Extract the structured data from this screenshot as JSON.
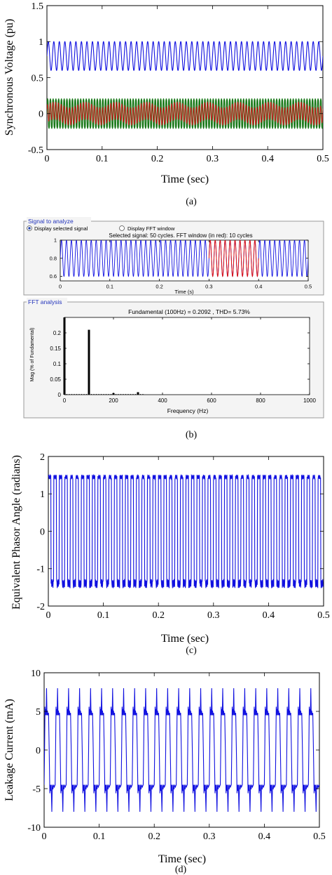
{
  "panel_a": {
    "caption": "(a)",
    "chart_data": {
      "type": "line",
      "xlabel": "Time (sec)",
      "ylabel": "Synchronous Voltage (pu)",
      "xlim": [
        0,
        0.5
      ],
      "ylim": [
        -0.5,
        1.5
      ],
      "xticks": [
        "0",
        "0.1",
        "0.2",
        "0.3",
        "0.4",
        "0.5"
      ],
      "yticks": [
        "-0.5",
        "0",
        "0.5",
        "1",
        "1.5"
      ],
      "grid": false,
      "series": [
        {
          "color": "#1010e0",
          "offset": 0.8,
          "amplitude": 0.2,
          "cycles": 50
        },
        {
          "color": "#187818",
          "offset": 0.0,
          "amplitude": 0.26,
          "cycles": 100
        },
        {
          "color": "#c0201a",
          "offset": 0.0,
          "amplitude": 0.12,
          "cycles": 100
        }
      ]
    }
  },
  "panel_b": {
    "caption": "(b)",
    "signal": {
      "group_title": "Signal to analyze",
      "radio_selected": "Display selected signal",
      "radio_other": "Display FFT window",
      "info": "Selected signal: 50 cycles. FFT window (in red): 10 cycles",
      "chart_data": {
        "type": "line",
        "xlabel": "Time (s)",
        "xlim": [
          0,
          0.5
        ],
        "ylim": [
          0.55,
          1.0
        ],
        "xticks": [
          "0",
          "0.1",
          "0.2",
          "0.3",
          "0.4",
          "0.5"
        ],
        "yticks": [
          "1",
          "0.8",
          "0.6"
        ],
        "offset": 0.8,
        "amplitude": 0.2,
        "cycles": 50,
        "fft_window": [
          0.3,
          0.4
        ],
        "colors": {
          "signal": "#1010e0",
          "window": "#e01010"
        }
      }
    },
    "fft": {
      "group_title": "FFT analysis",
      "title": "Fundamental (100Hz) = 0.2092 , THD= 5.73%",
      "chart_data": {
        "type": "bar",
        "xlabel": "Frequency (Hz)",
        "ylabel": "Mag (% of Fundamental)",
        "xlim": [
          0,
          1000
        ],
        "ylim": [
          0,
          0.25
        ],
        "xticks": [
          "0",
          "200",
          "400",
          "600",
          "800",
          "1000"
        ],
        "yticks": [
          "0.2",
          "0.15",
          "0.1",
          "0.05",
          "0"
        ],
        "x": [
          0,
          100,
          200,
          300
        ],
        "values": [
          0.25,
          0.21,
          0.005,
          0.008
        ]
      }
    }
  },
  "panel_c": {
    "caption": "(c)",
    "chart_data": {
      "type": "line",
      "xlabel": "Time (sec)",
      "ylabel": "Equivalent Phasor Angle (radians)",
      "xlim": [
        0,
        0.5
      ],
      "ylim": [
        -2,
        2
      ],
      "xticks": [
        "0",
        "0.1",
        "0.2",
        "0.3",
        "0.4",
        "0.5"
      ],
      "yticks": [
        "-2",
        "-1",
        "0",
        "1",
        "2"
      ],
      "grid": false,
      "series": [
        {
          "color": "#1010e0",
          "high": 1.45,
          "low": -1.4,
          "cycles": 50
        }
      ]
    }
  },
  "panel_d": {
    "caption": "(d)",
    "chart_data": {
      "type": "line",
      "xlabel": "Time (sec)",
      "ylabel": "Leakage Current (mA)",
      "xlim": [
        0,
        0.5
      ],
      "ylim": [
        -10,
        10
      ],
      "xticks": [
        "0",
        "0.1",
        "0.2",
        "0.3",
        "0.4",
        "0.5"
      ],
      "yticks": [
        "-10",
        "-5",
        "0",
        "5",
        "10"
      ],
      "grid": false,
      "series": [
        {
          "color": "#1010e0",
          "peak": 8,
          "plateau": 4.5,
          "cycles": 25
        }
      ]
    }
  }
}
